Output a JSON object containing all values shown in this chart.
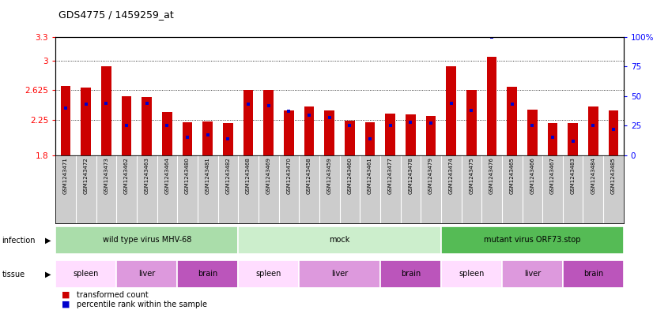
{
  "title": "GDS4775 / 1459259_at",
  "samples": [
    "GSM1243471",
    "GSM1243472",
    "GSM1243473",
    "GSM1243462",
    "GSM1243463",
    "GSM1243464",
    "GSM1243480",
    "GSM1243481",
    "GSM1243482",
    "GSM1243468",
    "GSM1243469",
    "GSM1243470",
    "GSM1243458",
    "GSM1243459",
    "GSM1243460",
    "GSM1243461",
    "GSM1243477",
    "GSM1243478",
    "GSM1243479",
    "GSM1243474",
    "GSM1243475",
    "GSM1243476",
    "GSM1243465",
    "GSM1243466",
    "GSM1243467",
    "GSM1243483",
    "GSM1243484",
    "GSM1243485"
  ],
  "transformed_count": [
    2.68,
    2.66,
    2.93,
    2.55,
    2.54,
    2.35,
    2.22,
    2.23,
    2.21,
    2.625,
    2.63,
    2.37,
    2.42,
    2.37,
    2.235,
    2.22,
    2.33,
    2.32,
    2.3,
    2.93,
    2.625,
    3.05,
    2.67,
    2.375,
    2.21,
    2.21,
    2.42,
    2.37
  ],
  "percentile_rank": [
    40,
    43,
    44,
    25,
    44,
    25,
    15,
    17,
    14,
    43,
    42,
    37,
    34,
    32,
    25,
    14,
    25,
    28,
    27,
    44,
    38,
    100,
    43,
    25,
    15,
    12,
    25,
    22
  ],
  "ymin": 1.8,
  "ymax": 3.3,
  "y_ticks": [
    1.8,
    2.25,
    2.625,
    3.0,
    3.3
  ],
  "y_tick_labels": [
    "1.8",
    "2.25",
    "2.625",
    "3",
    "3.3"
  ],
  "right_yticks": [
    0,
    25,
    50,
    75,
    100
  ],
  "right_ytick_labels": [
    "0",
    "25",
    "50",
    "75",
    "100%"
  ],
  "bar_color": "#cc0000",
  "blue_color": "#0000cc",
  "infection_groups": [
    {
      "label": "wild type virus MHV-68",
      "start": 0,
      "end": 9,
      "color": "#aaddaa"
    },
    {
      "label": "mock",
      "start": 9,
      "end": 19,
      "color": "#cceecc"
    },
    {
      "label": "mutant virus ORF73.stop",
      "start": 19,
      "end": 28,
      "color": "#55bb55"
    }
  ],
  "tissue_groups": [
    {
      "label": "spleen",
      "start": 0,
      "end": 3,
      "color": "#ffddff"
    },
    {
      "label": "liver",
      "start": 3,
      "end": 6,
      "color": "#dd99dd"
    },
    {
      "label": "brain",
      "start": 6,
      "end": 9,
      "color": "#bb55bb"
    },
    {
      "label": "spleen",
      "start": 9,
      "end": 12,
      "color": "#ffddff"
    },
    {
      "label": "liver",
      "start": 12,
      "end": 16,
      "color": "#dd99dd"
    },
    {
      "label": "brain",
      "start": 16,
      "end": 19,
      "color": "#bb55bb"
    },
    {
      "label": "spleen",
      "start": 19,
      "end": 22,
      "color": "#ffddff"
    },
    {
      "label": "liver",
      "start": 22,
      "end": 25,
      "color": "#dd99dd"
    },
    {
      "label": "brain",
      "start": 25,
      "end": 28,
      "color": "#bb55bb"
    }
  ],
  "xtick_bg": "#cccccc",
  "chart_bg": "#ffffff",
  "legend": [
    {
      "label": "transformed count",
      "color": "#cc0000"
    },
    {
      "label": "percentile rank within the sample",
      "color": "#0000cc"
    }
  ]
}
